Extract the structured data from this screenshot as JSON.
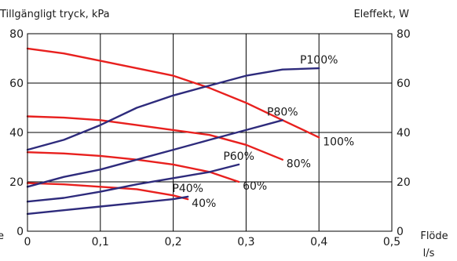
{
  "chart_data": {
    "type": "line",
    "ylabel_left": "Tillgängligt tryck, kPa",
    "ylabel_right": "Eleffekt, W",
    "xlabel_line1": "Flöde",
    "xlabel_line2": "l/s",
    "edge_text": "e",
    "xlim": [
      0,
      0.5
    ],
    "ylim": [
      0,
      80
    ],
    "y2lim": [
      0,
      80
    ],
    "xticks": [
      0,
      0.1,
      0.2,
      0.3,
      0.4,
      0.5
    ],
    "xtick_labels": [
      "0",
      "0,1",
      "0,2",
      "0,3",
      "0,4",
      "0,5"
    ],
    "yticks": [
      0,
      20,
      40,
      60,
      80
    ],
    "ytick_labels": [
      "0",
      "20",
      "40",
      "60",
      "80"
    ],
    "y2tick_labels": [
      "0",
      "20",
      "40",
      "60",
      "80"
    ],
    "grid": true,
    "colors": {
      "pressure": "#e8201e",
      "power": "#2e2b7c"
    },
    "series": [
      {
        "group": "pressure",
        "name": "100%",
        "label": "100%",
        "x": [
          0,
          0.05,
          0.1,
          0.15,
          0.2,
          0.25,
          0.3,
          0.35,
          0.4
        ],
        "y": [
          74,
          72,
          69,
          66,
          63,
          58,
          52,
          45,
          38
        ]
      },
      {
        "group": "pressure",
        "name": "80%",
        "label": "80%",
        "x": [
          0,
          0.05,
          0.1,
          0.15,
          0.2,
          0.25,
          0.3,
          0.35
        ],
        "y": [
          46.5,
          46,
          45,
          43,
          41,
          39,
          35,
          29
        ]
      },
      {
        "group": "pressure",
        "name": "60%",
        "label": "60%",
        "x": [
          0,
          0.05,
          0.1,
          0.15,
          0.2,
          0.25,
          0.29
        ],
        "y": [
          32,
          31.5,
          30.5,
          29,
          27,
          24,
          20
        ]
      },
      {
        "group": "pressure",
        "name": "40%",
        "label": "40%",
        "x": [
          0,
          0.05,
          0.1,
          0.15,
          0.2,
          0.22
        ],
        "y": [
          19.5,
          19,
          18,
          17,
          14.5,
          13
        ]
      },
      {
        "group": "power",
        "name": "P100%",
        "label": "P100%",
        "x": [
          0,
          0.05,
          0.1,
          0.15,
          0.2,
          0.25,
          0.3,
          0.35,
          0.4
        ],
        "y": [
          33,
          37,
          43,
          50,
          55,
          59,
          63,
          65.5,
          66
        ]
      },
      {
        "group": "power",
        "name": "P80%",
        "label": "P80%",
        "x": [
          0,
          0.05,
          0.1,
          0.15,
          0.2,
          0.25,
          0.3,
          0.35
        ],
        "y": [
          18,
          22,
          25,
          29,
          33,
          37,
          41,
          45
        ]
      },
      {
        "group": "power",
        "name": "P60%",
        "label": "P60%",
        "x": [
          0,
          0.05,
          0.1,
          0.15,
          0.2,
          0.25,
          0.29
        ],
        "y": [
          12,
          13.5,
          16,
          19,
          21.5,
          24,
          27
        ]
      },
      {
        "group": "power",
        "name": "P40%",
        "label": "P40%",
        "x": [
          0,
          0.05,
          0.1,
          0.15,
          0.2,
          0.22
        ],
        "y": [
          7,
          8.5,
          10,
          11.5,
          13,
          14
        ]
      }
    ]
  }
}
